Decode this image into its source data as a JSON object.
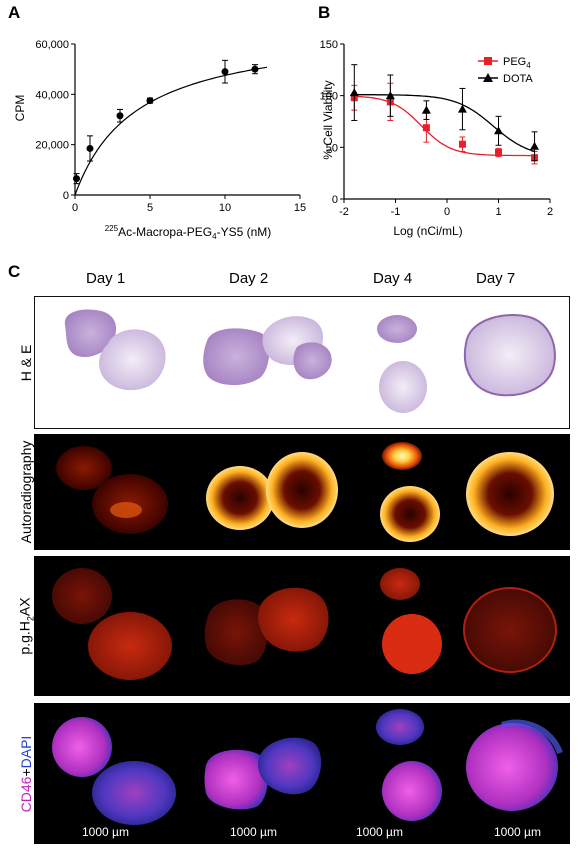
{
  "panels": {
    "a_letter": "A",
    "b_letter": "B",
    "c_letter": "C"
  },
  "chart_data": [
    {
      "type": "scatter",
      "panel": "A",
      "title": "",
      "xlabel_prefix": "225",
      "xlabel_main_1": "Ac-Macropa-PEG",
      "xlabel_sub": "4",
      "xlabel_main_2": "-YS5 (nM)",
      "ylabel": "CPM",
      "xlim": [
        0,
        15
      ],
      "ylim": [
        0,
        60000
      ],
      "x_ticks": [
        "0",
        "5",
        "10",
        "15"
      ],
      "y_ticks": [
        "0",
        "20,000",
        "40,000",
        "60,000"
      ],
      "points": [
        {
          "x": 0.1,
          "y": 6500,
          "err": 2000
        },
        {
          "x": 1,
          "y": 18500,
          "err": 5000
        },
        {
          "x": 3,
          "y": 31500,
          "err": 2500
        },
        {
          "x": 5,
          "y": 37500,
          "err": 1000
        },
        {
          "x": 10,
          "y": 49000,
          "err": 4500
        },
        {
          "x": 12,
          "y": 50000,
          "err": 1800
        }
      ],
      "fit": {
        "bmax": 67000,
        "kd": 4.1
      },
      "colors": {
        "marker": "#000000",
        "line": "#000000"
      }
    },
    {
      "type": "line",
      "panel": "B",
      "title": "",
      "xlabel": "Log (nCi/mL)",
      "ylabel": "% Cell Viability",
      "xlim": [
        -2,
        2
      ],
      "ylim": [
        0,
        150
      ],
      "x_ticks": [
        "-2",
        "-1",
        "0",
        "1",
        "2"
      ],
      "y_ticks": [
        "0",
        "50",
        "100",
        "150"
      ],
      "legend_position": "top-right",
      "series": [
        {
          "name_main": "PEG",
          "name_sub": "4",
          "color": "#e8202a",
          "marker": "square",
          "points": [
            {
              "x": -1.8,
              "y": 98,
              "err": 12
            },
            {
              "x": -1.1,
              "y": 94,
              "err": 18
            },
            {
              "x": -0.4,
              "y": 69,
              "err": 14
            },
            {
              "x": 0.3,
              "y": 53,
              "err": 7
            },
            {
              "x": 1.0,
              "y": 45,
              "err": 4
            },
            {
              "x": 1.7,
              "y": 40,
              "err": 6
            }
          ],
          "fit": {
            "top": 100,
            "bottom": 42,
            "ec50": -0.5,
            "hill": 1.5
          }
        },
        {
          "name_main": "DOTA",
          "name_sub": "",
          "color": "#000000",
          "marker": "triangle",
          "points": [
            {
              "x": -1.8,
              "y": 103,
              "err": 27
            },
            {
              "x": -1.1,
              "y": 100,
              "err": 20
            },
            {
              "x": -0.4,
              "y": 86,
              "err": 9
            },
            {
              "x": 0.3,
              "y": 87,
              "err": 20
            },
            {
              "x": 1.0,
              "y": 66,
              "err": 14
            },
            {
              "x": 1.7,
              "y": 51,
              "err": 14
            }
          ],
          "fit": {
            "top": 101,
            "bottom": 40,
            "ec50": 0.9,
            "hill": 1.2
          }
        }
      ]
    }
  ],
  "panel_c": {
    "days": [
      "Day 1",
      "Day 2",
      "Day 4",
      "Day 7"
    ],
    "rows": {
      "he": "H & E",
      "ar": "Autoradiography",
      "ph_main": "p.g.H",
      "ph_sub": "2",
      "ph_tail": "AX",
      "cd_main": "CD46",
      "cd_plus": "+",
      "cd_dapi": "DAPI"
    },
    "scale_bars": [
      "1000 µm",
      "1000 µm",
      "1000 µm",
      "1000 µm"
    ],
    "colors": {
      "he_fill": "#b696cc",
      "he_pale": "#e4daee",
      "ar_hot": "#fff2a0",
      "ar_mid": "#ff7a10",
      "ar_dim": "#5a0800",
      "ph_fill": "#b8200e",
      "ph_dim": "#6e0d06",
      "cd_magenta": "#e040d8",
      "cd_blue": "#3a38c8"
    }
  }
}
